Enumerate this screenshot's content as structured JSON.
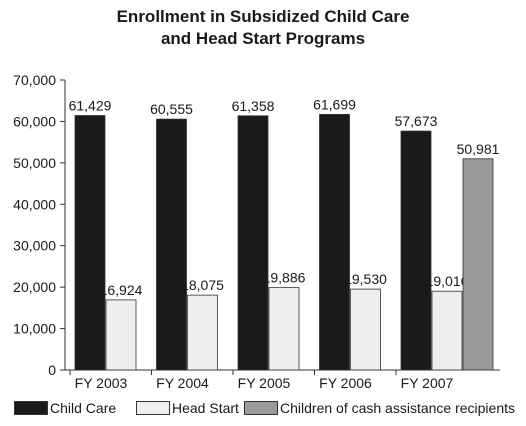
{
  "chart_data": {
    "type": "bar",
    "title_lines": [
      "Enrollment in Subsidized Child Care",
      "and Head Start Programs"
    ],
    "categories": [
      "FY 2003",
      "FY 2004",
      "FY 2005",
      "FY 2006",
      "FY 2007"
    ],
    "series": [
      {
        "name": "Child Care",
        "color": "#1a1a1a",
        "values": [
          61429,
          60555,
          61358,
          61699,
          57673
        ],
        "labels": [
          "61,429",
          "60,555",
          "61,358",
          "61,699",
          "57,673"
        ]
      },
      {
        "name": "Head Start",
        "color": "#eeeeee",
        "values": [
          16924,
          18075,
          19886,
          19530,
          19016
        ],
        "labels": [
          "16,924",
          "18,075",
          "19,886",
          "19,530",
          "19,016"
        ]
      },
      {
        "name": "Children of cash assistance recipients",
        "color": "#999999",
        "values": [
          null,
          null,
          null,
          null,
          50981
        ],
        "labels": [
          "",
          "",
          "",
          "",
          "50,981"
        ]
      }
    ],
    "yticks": [
      0,
      10000,
      20000,
      30000,
      40000,
      50000,
      60000,
      70000
    ],
    "ytick_labels": [
      "0",
      "10,000",
      "20,000",
      "30,000",
      "40,000",
      "50,000",
      "60,000",
      "70,000"
    ],
    "ylim": [
      0,
      70000
    ],
    "grid": false,
    "legend_position": "bottom"
  }
}
